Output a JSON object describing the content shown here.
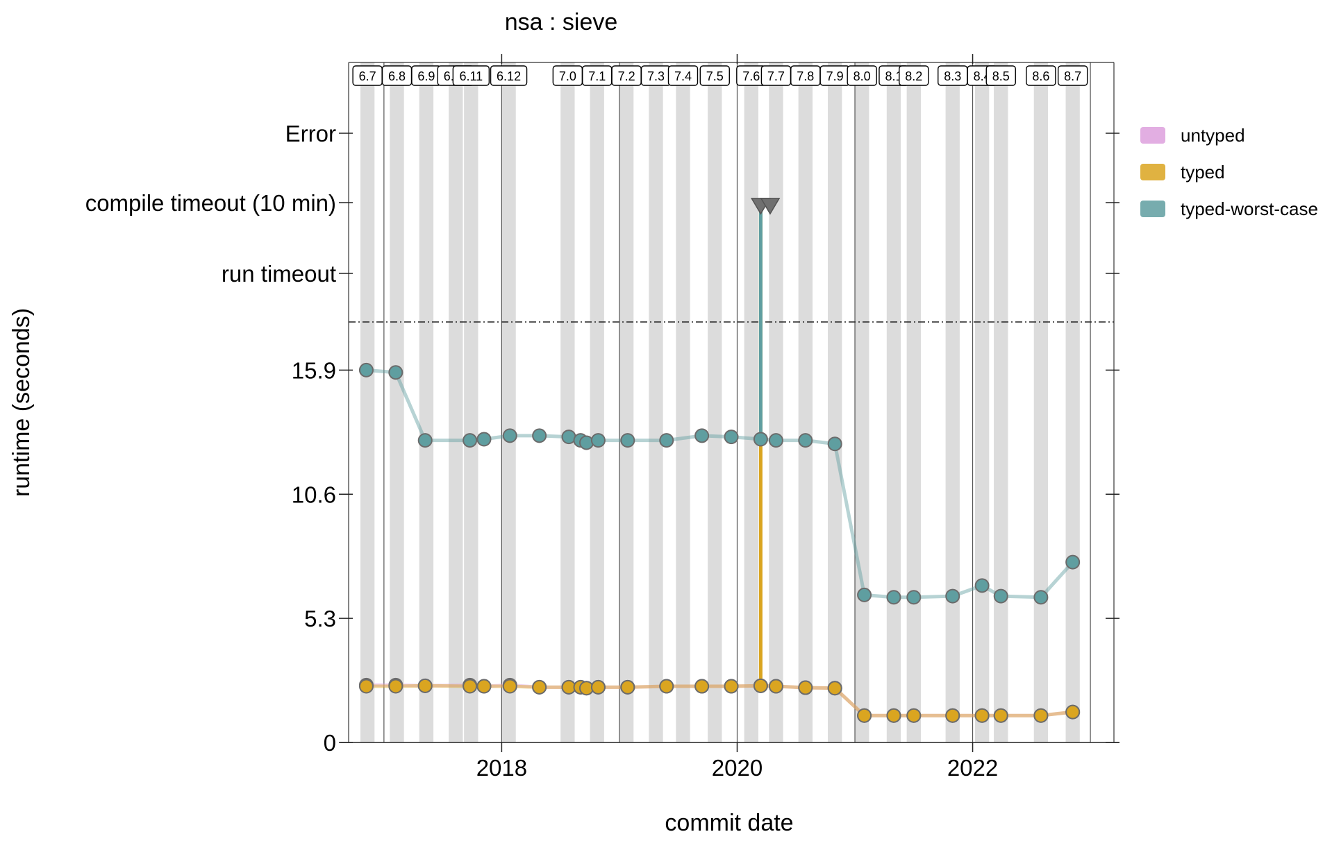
{
  "chart_data": {
    "type": "line",
    "title": "nsa : sieve",
    "xlabel": "commit date",
    "ylabel": "runtime (seconds)",
    "x_range": [
      2016.7,
      2023.2
    ],
    "x_ticks": [
      "2018",
      "2020",
      "2022"
    ],
    "y_range": [
      0,
      17.5
    ],
    "y_ticks": [
      "0",
      "5.3",
      "10.6",
      "15.9"
    ],
    "y_special_levels": [
      "run timeout",
      "compile timeout (10 min)",
      "Error"
    ],
    "grid": false,
    "legend_position": "right",
    "releases": [
      {
        "label": "6.7",
        "start": 2016.8,
        "end": 2016.92
      },
      {
        "label": "6.8",
        "start": 2017.05,
        "end": 2017.17
      },
      {
        "label": "6.9",
        "start": 2017.3,
        "end": 2017.42
      },
      {
        "label": "6.10",
        "start": 2017.55,
        "end": 2017.67
      },
      {
        "label": "6.11",
        "start": 2017.68,
        "end": 2017.8
      },
      {
        "label": "6.12",
        "start": 2018.0,
        "end": 2018.12
      },
      {
        "label": "7.0",
        "start": 2018.5,
        "end": 2018.62
      },
      {
        "label": "7.1",
        "start": 2018.75,
        "end": 2018.87
      },
      {
        "label": "7.2",
        "start": 2019.0,
        "end": 2019.12
      },
      {
        "label": "7.3",
        "start": 2019.25,
        "end": 2019.37
      },
      {
        "label": "7.4",
        "start": 2019.48,
        "end": 2019.6
      },
      {
        "label": "7.5",
        "start": 2019.75,
        "end": 2019.87
      },
      {
        "label": "7.6",
        "start": 2020.06,
        "end": 2020.18
      },
      {
        "label": "7.7",
        "start": 2020.27,
        "end": 2020.39
      },
      {
        "label": "7.8",
        "start": 2020.52,
        "end": 2020.64
      },
      {
        "label": "7.9",
        "start": 2020.77,
        "end": 2020.89
      },
      {
        "label": "8.0",
        "start": 2021.0,
        "end": 2021.12
      },
      {
        "label": "8.1",
        "start": 2021.27,
        "end": 2021.39
      },
      {
        "label": "8.2",
        "start": 2021.44,
        "end": 2021.56
      },
      {
        "label": "8.3",
        "start": 2021.77,
        "end": 2021.89
      },
      {
        "label": "8.4",
        "start": 2022.02,
        "end": 2022.14
      },
      {
        "label": "8.5",
        "start": 2022.18,
        "end": 2022.3
      },
      {
        "label": "8.6",
        "start": 2022.52,
        "end": 2022.64
      },
      {
        "label": "8.7",
        "start": 2022.79,
        "end": 2022.91
      }
    ],
    "series": [
      {
        "name": "untyped",
        "color": "#dda0dd",
        "points": [
          [
            2016.85,
            2.45
          ],
          [
            2017.1,
            2.45
          ],
          [
            2017.35,
            2.42
          ],
          [
            2017.73,
            2.45
          ],
          [
            2017.85,
            2.4
          ],
          [
            2018.07,
            2.45
          ],
          [
            2018.32,
            2.36
          ],
          [
            2018.57,
            2.36
          ],
          [
            2018.67,
            2.36
          ],
          [
            2018.72,
            2.32
          ],
          [
            2018.82,
            2.36
          ],
          [
            2019.07,
            2.36
          ],
          [
            2019.4,
            2.4
          ],
          [
            2019.7,
            2.4
          ],
          [
            2019.95,
            2.4
          ],
          [
            2020.2,
            2.42
          ],
          [
            2020.33,
            2.4
          ],
          [
            2020.58,
            2.34
          ],
          [
            2020.83,
            2.32
          ],
          [
            2021.08,
            1.15
          ],
          [
            2021.33,
            1.15
          ],
          [
            2021.5,
            1.15
          ],
          [
            2021.83,
            1.15
          ],
          [
            2022.08,
            1.15
          ],
          [
            2022.24,
            1.15
          ],
          [
            2022.58,
            1.15
          ],
          [
            2022.85,
            1.3
          ]
        ]
      },
      {
        "name": "typed",
        "color": "#daa520",
        "points": [
          [
            2016.85,
            2.4
          ],
          [
            2017.1,
            2.4
          ],
          [
            2017.35,
            2.42
          ],
          [
            2017.73,
            2.4
          ],
          [
            2017.85,
            2.4
          ],
          [
            2018.07,
            2.4
          ],
          [
            2018.32,
            2.36
          ],
          [
            2018.57,
            2.36
          ],
          [
            2018.67,
            2.36
          ],
          [
            2018.72,
            2.32
          ],
          [
            2018.82,
            2.36
          ],
          [
            2019.07,
            2.36
          ],
          [
            2019.4,
            2.4
          ],
          [
            2019.7,
            2.4
          ],
          [
            2019.95,
            2.4
          ],
          [
            2020.2,
            2.42
          ],
          [
            2020.33,
            2.4
          ],
          [
            2020.58,
            2.34
          ],
          [
            2020.83,
            2.32
          ],
          [
            2021.08,
            1.15
          ],
          [
            2021.33,
            1.15
          ],
          [
            2021.5,
            1.15
          ],
          [
            2021.83,
            1.15
          ],
          [
            2022.08,
            1.15
          ],
          [
            2022.24,
            1.15
          ],
          [
            2022.58,
            1.15
          ],
          [
            2022.85,
            1.3
          ]
        ],
        "timeouts": [
          2020.2,
          2020.28
        ]
      },
      {
        "name": "typed-worst-case",
        "color": "#5f9ea0",
        "points": [
          [
            2016.85,
            15.9
          ],
          [
            2017.1,
            15.8
          ],
          [
            2017.35,
            12.9
          ],
          [
            2017.73,
            12.9
          ],
          [
            2017.85,
            12.95
          ],
          [
            2018.07,
            13.1
          ],
          [
            2018.32,
            13.1
          ],
          [
            2018.57,
            13.05
          ],
          [
            2018.67,
            12.9
          ],
          [
            2018.72,
            12.8
          ],
          [
            2018.82,
            12.9
          ],
          [
            2019.07,
            12.9
          ],
          [
            2019.4,
            12.9
          ],
          [
            2019.7,
            13.1
          ],
          [
            2019.95,
            13.05
          ],
          [
            2020.2,
            12.95
          ],
          [
            2020.33,
            12.9
          ],
          [
            2020.58,
            12.9
          ],
          [
            2020.83,
            12.75
          ],
          [
            2021.08,
            6.3
          ],
          [
            2021.33,
            6.2
          ],
          [
            2021.5,
            6.2
          ],
          [
            2021.83,
            6.25
          ],
          [
            2022.08,
            6.7
          ],
          [
            2022.24,
            6.25
          ],
          [
            2022.58,
            6.2
          ],
          [
            2022.85,
            7.7
          ]
        ],
        "timeouts": [
          2020.2,
          2020.28
        ]
      }
    ]
  }
}
